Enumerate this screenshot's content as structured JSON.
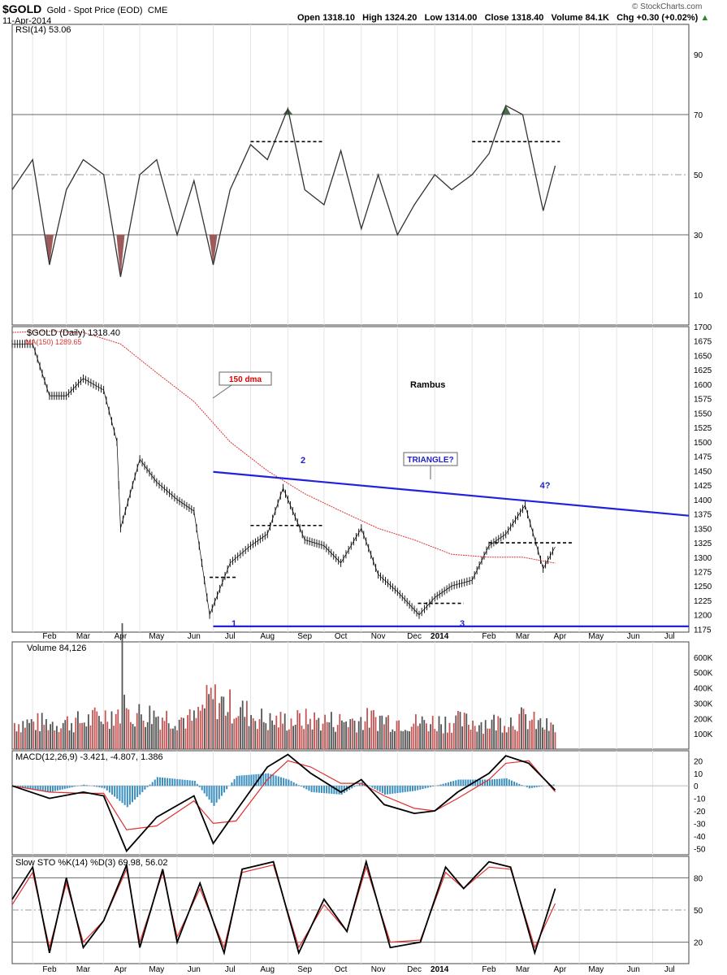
{
  "header": {
    "symbol": "$GOLD",
    "name": "Gold - Spot Price (EOD)",
    "exchange": "CME",
    "date": "11-Apr-2014",
    "open_label": "Open",
    "open": "1318.10",
    "high_label": "High",
    "high": "1324.20",
    "low_label": "Low",
    "low": "1314.00",
    "close_label": "Close",
    "close": "1318.40",
    "volume_label": "Volume",
    "volume": "84.1K",
    "chg_label": "Chg",
    "chg": "+0.30 (+0.02%)",
    "watermark": "© StockCharts.com"
  },
  "x_months": [
    "Feb",
    "Mar",
    "Apr",
    "May",
    "Jun",
    "Jul",
    "Aug",
    "Sep",
    "Oct",
    "Nov",
    "Dec",
    "2014",
    "Feb",
    "Mar",
    "Apr",
    "May",
    "Jun",
    "Jul"
  ],
  "annotations": {
    "dma_callout": "150 dma",
    "author": "Rambus",
    "triangle_callout": "TRIANGLE?",
    "pivot_1": "1",
    "pivot_2": "2",
    "pivot_3": "3",
    "pivot_4": "4?"
  },
  "chart_data": [
    {
      "type": "line",
      "panel": "RSI",
      "title": "RSI(14) 53.06",
      "ylim": [
        0,
        100
      ],
      "y_ticks": [
        10,
        30,
        50,
        70,
        90
      ],
      "reference_lines": [
        30,
        50,
        70
      ],
      "x": [
        "2013-01-15",
        "2013-02-01",
        "2013-02-15",
        "2013-03-01",
        "2013-03-15",
        "2013-04-01",
        "2013-04-15",
        "2013-05-01",
        "2013-05-15",
        "2013-06-01",
        "2013-06-15",
        "2013-07-01",
        "2013-07-15",
        "2013-08-01",
        "2013-08-15",
        "2013-09-01",
        "2013-09-15",
        "2013-10-01",
        "2013-10-15",
        "2013-11-01",
        "2013-11-15",
        "2013-12-01",
        "2013-12-15",
        "2014-01-01",
        "2014-01-15",
        "2014-02-01",
        "2014-02-15",
        "2014-03-01",
        "2014-03-15",
        "2014-04-01",
        "2014-04-11"
      ],
      "values": [
        45,
        55,
        20,
        45,
        55,
        50,
        16,
        50,
        55,
        30,
        48,
        20,
        45,
        60,
        55,
        72,
        45,
        40,
        58,
        32,
        50,
        30,
        40,
        50,
        45,
        50,
        57,
        73,
        70,
        38,
        53
      ],
      "dashed_levels": [
        {
          "from": "2013-08-01",
          "to": "2013-10-01",
          "y": 61
        },
        {
          "from": "2014-02-01",
          "to": "2014-04-15",
          "y": 61
        }
      ]
    },
    {
      "type": "line",
      "panel": "Price",
      "title": "$GOLD (Daily) 1318.40",
      "series": [
        {
          "name": "$GOLD (Daily) 1318.40",
          "x": [
            "2013-01-15",
            "2013-02-01",
            "2013-02-15",
            "2013-03-01",
            "2013-03-15",
            "2013-04-01",
            "2013-04-12",
            "2013-04-15",
            "2013-05-01",
            "2013-05-15",
            "2013-06-01",
            "2013-06-15",
            "2013-06-28",
            "2013-07-15",
            "2013-08-01",
            "2013-08-15",
            "2013-08-28",
            "2013-09-15",
            "2013-10-01",
            "2013-10-15",
            "2013-11-01",
            "2013-11-15",
            "2013-12-01",
            "2013-12-19",
            "2014-01-01",
            "2014-01-15",
            "2014-02-01",
            "2014-02-15",
            "2014-03-01",
            "2014-03-17",
            "2014-04-01",
            "2014-04-11"
          ],
          "values": [
            1670,
            1670,
            1580,
            1580,
            1610,
            1590,
            1500,
            1350,
            1470,
            1430,
            1400,
            1380,
            1200,
            1290,
            1320,
            1340,
            1420,
            1330,
            1320,
            1290,
            1350,
            1270,
            1240,
            1200,
            1230,
            1250,
            1260,
            1320,
            1340,
            1390,
            1280,
            1318
          ]
        },
        {
          "name": "MA(150) 1289.65",
          "x": [
            "2013-01-15",
            "2013-02-15",
            "2013-03-15",
            "2013-04-15",
            "2013-05-15",
            "2013-06-15",
            "2013-07-15",
            "2013-08-15",
            "2013-09-15",
            "2013-10-15",
            "2013-11-15",
            "2013-12-15",
            "2014-01-15",
            "2014-02-15",
            "2014-03-15",
            "2014-04-11"
          ],
          "values": [
            1690,
            1692,
            1690,
            1670,
            1620,
            1570,
            1500,
            1450,
            1410,
            1380,
            1350,
            1330,
            1305,
            1300,
            1300,
            1289.65
          ]
        }
      ],
      "ylim": [
        1170,
        1700
      ],
      "y_ticks": [
        1175,
        1200,
        1225,
        1250,
        1275,
        1300,
        1325,
        1350,
        1375,
        1400,
        1425,
        1450,
        1475,
        1500,
        1525,
        1550,
        1575,
        1600,
        1625,
        1650,
        1675,
        1700
      ],
      "trendlines": [
        {
          "label": "triangle top",
          "from": [
            "2013-07-01",
            1448
          ],
          "to": [
            "2014-07-31",
            1372
          ]
        },
        {
          "label": "support",
          "from": [
            "2013-07-01",
            1180
          ],
          "to": [
            "2014-07-31",
            1180
          ]
        }
      ],
      "dashed_levels": [
        {
          "from": "2013-06-28",
          "to": "2013-07-20",
          "y": 1265
        },
        {
          "from": "2013-08-01",
          "to": "2013-10-01",
          "y": 1355
        },
        {
          "from": "2013-12-18",
          "to": "2014-01-25",
          "y": 1220
        },
        {
          "from": "2014-02-15",
          "to": "2014-04-25",
          "y": 1325
        }
      ]
    },
    {
      "type": "bar",
      "panel": "Volume",
      "title": "Volume 84,126",
      "ylim": [
        0,
        700000
      ],
      "y_ticks": [
        100000,
        200000,
        300000,
        400000,
        500000,
        600000
      ],
      "y_tick_labels": [
        "100K",
        "200K",
        "300K",
        "400K",
        "500K",
        "600K"
      ],
      "x": [
        "2013-02",
        "2013-03",
        "2013-04",
        "2013-04-15",
        "2013-05",
        "2013-06",
        "2013-06-28",
        "2013-08",
        "2013-09",
        "2013-10",
        "2013-11",
        "2013-12",
        "2014-01",
        "2014-02",
        "2014-03",
        "2014-04"
      ],
      "values": [
        180000,
        190000,
        260000,
        660000,
        230000,
        200000,
        350000,
        190000,
        200000,
        190000,
        210000,
        180000,
        190000,
        180000,
        210000,
        120000
      ]
    },
    {
      "type": "line",
      "panel": "MACD",
      "title": "MACD(12,26,9) -3.421, -4.807, 1.386",
      "ylim": [
        -55,
        28
      ],
      "y_ticks": [
        -50,
        -40,
        -30,
        -20,
        -10,
        0,
        10,
        20
      ],
      "x": [
        "2013-01-15",
        "2013-02-15",
        "2013-03-15",
        "2013-04-01",
        "2013-04-20",
        "2013-05-15",
        "2013-06-15",
        "2013-07-01",
        "2013-07-20",
        "2013-08-15",
        "2013-09-01",
        "2013-09-20",
        "2013-10-15",
        "2013-11-01",
        "2013-11-20",
        "2013-12-15",
        "2014-01-01",
        "2014-01-20",
        "2014-02-15",
        "2014-03-01",
        "2014-03-20",
        "2014-04-11"
      ],
      "series": [
        {
          "name": "MACD",
          "values": [
            0,
            -10,
            -5,
            -8,
            -52,
            -25,
            -8,
            -46,
            -20,
            15,
            25,
            10,
            -5,
            5,
            -15,
            -22,
            -20,
            -5,
            10,
            24,
            18,
            -3.421
          ]
        },
        {
          "name": "Signal",
          "values": [
            0,
            -5,
            -6,
            -6,
            -35,
            -32,
            -12,
            -30,
            -28,
            5,
            20,
            15,
            2,
            2,
            -8,
            -18,
            -20,
            -10,
            5,
            18,
            20,
            -4.807
          ]
        }
      ],
      "histogram_last": 1.386
    },
    {
      "type": "line",
      "panel": "Slow STO",
      "title": "Slow STO %K(14) %D(3) 69.98, 56.02",
      "ylim": [
        0,
        100
      ],
      "y_ticks": [
        20,
        50,
        80
      ],
      "reference_lines": [
        20,
        50,
        80
      ],
      "x": [
        "2013-01-15",
        "2013-02-01",
        "2013-02-15",
        "2013-03-01",
        "2013-03-15",
        "2013-04-01",
        "2013-04-20",
        "2013-05-01",
        "2013-05-20",
        "2013-06-01",
        "2013-06-20",
        "2013-07-10",
        "2013-07-25",
        "2013-08-20",
        "2013-09-10",
        "2013-10-01",
        "2013-10-20",
        "2013-11-05",
        "2013-11-25",
        "2013-12-20",
        "2014-01-10",
        "2014-01-25",
        "2014-02-15",
        "2014-03-05",
        "2014-03-25",
        "2014-04-11"
      ],
      "series": [
        {
          "name": "%K",
          "values": [
            60,
            90,
            10,
            80,
            15,
            40,
            92,
            15,
            88,
            20,
            75,
            10,
            88,
            95,
            10,
            60,
            30,
            95,
            15,
            20,
            90,
            70,
            95,
            90,
            10,
            69.98
          ]
        },
        {
          "name": "%D",
          "values": [
            55,
            85,
            15,
            75,
            20,
            40,
            88,
            20,
            85,
            25,
            70,
            15,
            85,
            92,
            15,
            55,
            30,
            90,
            20,
            22,
            85,
            70,
            90,
            88,
            15,
            56.02
          ]
        }
      ]
    }
  ]
}
